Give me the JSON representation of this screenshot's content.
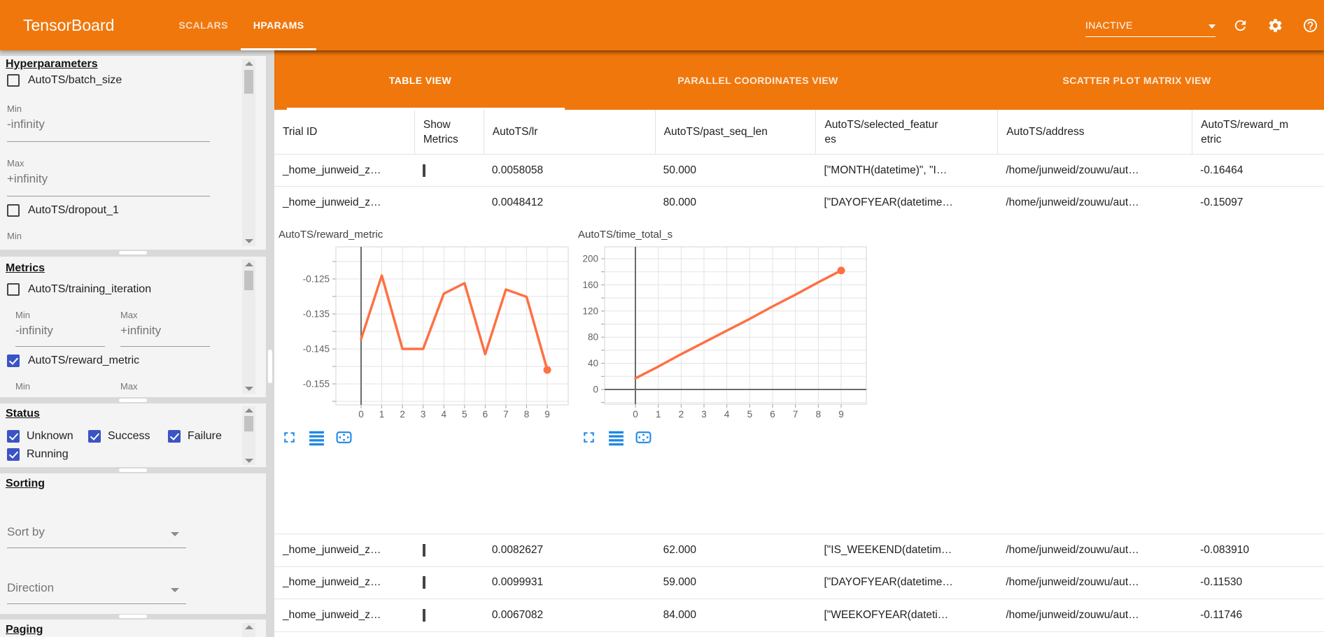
{
  "header": {
    "app_title": "TensorBoard",
    "tabs": [
      {
        "label": "SCALARS",
        "active": false
      },
      {
        "label": "HPARAMS",
        "active": true
      }
    ],
    "run_status": "INACTIVE",
    "icons": [
      "dropdown-caret-icon",
      "refresh-icon",
      "settings-gear-icon",
      "help-icon"
    ]
  },
  "sidebar": {
    "hyperparameters": {
      "title": "Hyperparameters",
      "batch_size": {
        "label": "AutoTS/batch_size",
        "checked": false,
        "min_label": "Min",
        "min_value": "-infinity",
        "max_label": "Max",
        "max_value": "+infinity"
      },
      "dropout_1": {
        "label": "AutoTS/dropout_1",
        "checked": false,
        "min_label": "Min"
      }
    },
    "metrics": {
      "title": "Metrics",
      "training_iteration": {
        "label": "AutoTS/training_iteration",
        "checked": false,
        "min_label": "Min",
        "min_value": "-infinity",
        "max_label": "Max",
        "max_value": "+infinity"
      },
      "reward_metric": {
        "label": "AutoTS/reward_metric",
        "checked": true,
        "min_label": "Min",
        "max_label": "Max"
      }
    },
    "status": {
      "title": "Status",
      "unknown": {
        "label": "Unknown",
        "checked": true
      },
      "success": {
        "label": "Success",
        "checked": true
      },
      "failure": {
        "label": "Failure",
        "checked": true
      },
      "running": {
        "label": "Running",
        "checked": true
      }
    },
    "sorting": {
      "title": "Sorting",
      "sort_by_label": "Sort by",
      "direction_label": "Direction"
    },
    "paging": {
      "title": "Paging"
    }
  },
  "view_tabs": {
    "table": "TABLE VIEW",
    "parallel": "PARALLEL COORDINATES VIEW",
    "scatter": "SCATTER PLOT MATRIX VIEW"
  },
  "table": {
    "columns": [
      "Trial ID",
      "Show Metrics",
      "AutoTS/lr",
      "AutoTS/past_seq_len",
      "AutoTS/selected_features",
      "AutoTS/address",
      "AutoTS/reward_metric"
    ],
    "rows": [
      {
        "trial_id": "_home_junweid_z…",
        "show_metrics": false,
        "lr": "0.0058058",
        "past_seq_len": "50.000",
        "selected_features": "[\"MONTH(datetime)\", \"I…",
        "address": "/home/junweid/zouwu/aut…",
        "reward_metric": "-0.16464"
      },
      {
        "trial_id": "_home_junweid_z…",
        "show_metrics": true,
        "lr": "0.0048412",
        "past_seq_len": "80.000",
        "selected_features": "[\"DAYOFYEAR(datetime…",
        "address": "/home/junweid/zouwu/aut…",
        "reward_metric": "-0.15097",
        "expanded": true
      },
      {
        "trial_id": "_home_junweid_z…",
        "show_metrics": false,
        "lr": "0.0082627",
        "past_seq_len": "62.000",
        "selected_features": "[\"IS_WEEKEND(datetim…",
        "address": "/home/junweid/zouwu/aut…",
        "reward_metric": "-0.083910"
      },
      {
        "trial_id": "_home_junweid_z…",
        "show_metrics": false,
        "lr": "0.0099931",
        "past_seq_len": "59.000",
        "selected_features": "[\"DAYOFYEAR(datetime…",
        "address": "/home/junweid/zouwu/aut…",
        "reward_metric": "-0.11530"
      },
      {
        "trial_id": "_home_junweid_z…",
        "show_metrics": false,
        "lr": "0.0067082",
        "past_seq_len": "84.000",
        "selected_features": "[\"WEEKOFYEAR(dateti…",
        "address": "/home/junweid/zouwu/aut…",
        "reward_metric": "-0.11746"
      }
    ]
  },
  "chart_data": [
    {
      "type": "line",
      "title": "AutoTS/reward_metric",
      "x": [
        0,
        1,
        2,
        3,
        4,
        5,
        6,
        7,
        8,
        9
      ],
      "values": [
        -0.1422,
        -0.124,
        -0.145,
        -0.145,
        -0.1292,
        -0.1262,
        -0.1465,
        -0.128,
        -0.1301,
        -0.151
      ],
      "xticks": [
        0,
        1,
        2,
        3,
        4,
        5,
        6,
        7,
        8,
        9
      ],
      "yticks": [
        -0.125,
        -0.135,
        -0.145,
        -0.155
      ],
      "ylim": [
        -0.1615,
        -0.1155
      ],
      "xlim": [
        -1.4,
        10
      ],
      "grid": true,
      "line_color": "#ff7043",
      "end_marker": true
    },
    {
      "type": "line",
      "title": "AutoTS/time_total_s",
      "x": [
        0,
        1,
        2,
        3,
        4,
        5,
        6,
        7,
        8,
        9
      ],
      "values": [
        17,
        35,
        54,
        72,
        90,
        108,
        127,
        145,
        164,
        182
      ],
      "xticks": [
        0,
        1,
        2,
        3,
        4,
        5,
        6,
        7,
        8,
        9
      ],
      "yticks": [
        200,
        160,
        120,
        80,
        40,
        0
      ],
      "ylim": [
        -22,
        218
      ],
      "xlim": [
        -1.4,
        10.1
      ],
      "grid": true,
      "line_color": "#ff7043",
      "end_marker": true
    }
  ],
  "chart_toolbar_icons": [
    "fullscreen-icon",
    "list-lines-icon",
    "pan-reset-icon"
  ],
  "colors": {
    "header_orange": "#f0770c",
    "checkbox_blue": "#3b54c4",
    "chart_line_orange": "#ff7043",
    "chart_icon_blue": "#1e88e5"
  }
}
